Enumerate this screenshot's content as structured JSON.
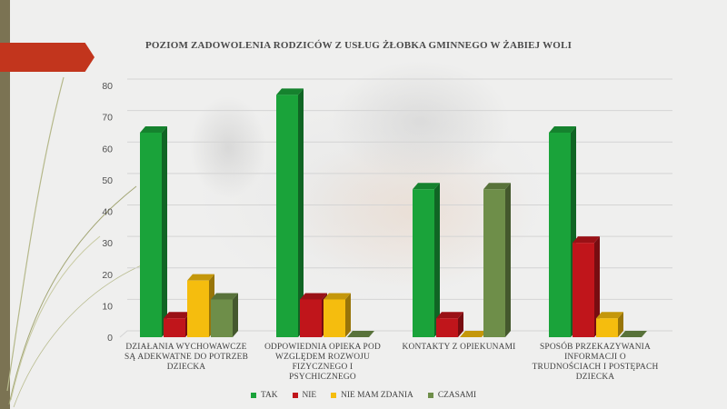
{
  "chart_data": {
    "type": "bar",
    "title": "POZIOM ZADOWOLENIA RODZICÓW Z USŁUG ŻŁOBKA GMINNEGO W ŻABIEJ WOLI",
    "categories": [
      "DZIAŁANIA WYCHOWAWCZE SĄ ADEKWATNE DO POTRZEB DZIECKA",
      "ODPOWIEDNIA OPIEKA POD WZGLĘDEM ROZWOJU FIZYCZNEGO I PSYCHICZNEGO",
      "KONTAKTY Z OPIEKUNAMI",
      "SPOSÓB PRZEKAZYWANIA INFORMACJI O TRUDNOŚCIACH I POSTĘPACH DZIECKA"
    ],
    "series": [
      {
        "name": "TAK",
        "color": "#1aa33a",
        "values": [
          65,
          77,
          47,
          65
        ]
      },
      {
        "name": "NIE",
        "color": "#c0151b",
        "values": [
          6,
          12,
          6,
          30
        ]
      },
      {
        "name": "NIE MAM ZDANIA",
        "color": "#f5bd0e",
        "values": [
          18,
          12,
          0,
          6
        ]
      },
      {
        "name": "CZASAMI",
        "color": "#6e8e49",
        "values": [
          12,
          0,
          47,
          0
        ]
      }
    ],
    "ylim": [
      0,
      80
    ],
    "yticks": [
      0,
      10,
      20,
      30,
      40,
      50,
      60,
      70,
      80
    ],
    "grid": true,
    "legend_position": "bottom"
  }
}
